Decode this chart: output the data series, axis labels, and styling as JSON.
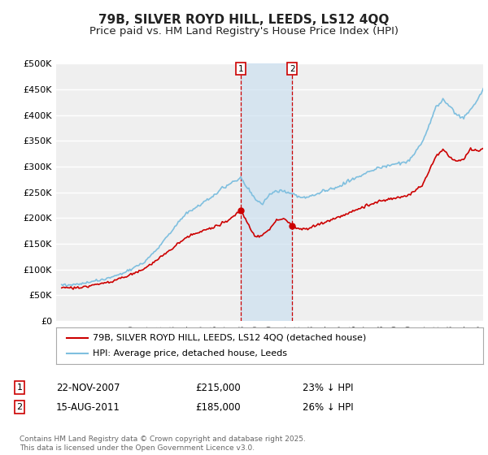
{
  "title": "79B, SILVER ROYD HILL, LEEDS, LS12 4QQ",
  "subtitle": "Price paid vs. HM Land Registry's House Price Index (HPI)",
  "ylim": [
    0,
    500000
  ],
  "yticks": [
    0,
    50000,
    100000,
    150000,
    200000,
    250000,
    300000,
    350000,
    400000,
    450000,
    500000
  ],
  "ytick_labels": [
    "£0",
    "£50K",
    "£100K",
    "£150K",
    "£200K",
    "£250K",
    "£300K",
    "£350K",
    "£400K",
    "£450K",
    "£500K"
  ],
  "background_color": "#ffffff",
  "plot_bg_color": "#efefef",
  "grid_color": "#ffffff",
  "hpi_color": "#7fbfdf",
  "price_color": "#cc0000",
  "sale1_x": 2007.896,
  "sale1_price": 215000,
  "sale1_pct": "23%",
  "sale1_date": "22-NOV-2007",
  "sale2_x": 2011.621,
  "sale2_price": 185000,
  "sale2_pct": "26%",
  "sale2_date": "15-AUG-2011",
  "legend_label1": "79B, SILVER ROYD HILL, LEEDS, LS12 4QQ (detached house)",
  "legend_label2": "HPI: Average price, detached house, Leeds",
  "footnote": "Contains HM Land Registry data © Crown copyright and database right 2025.\nThis data is licensed under the Open Government Licence v3.0.",
  "title_fontsize": 11,
  "subtitle_fontsize": 9.5,
  "shade_color": "#cce0f0",
  "xlim_left": 1994.6,
  "xlim_right": 2025.4
}
